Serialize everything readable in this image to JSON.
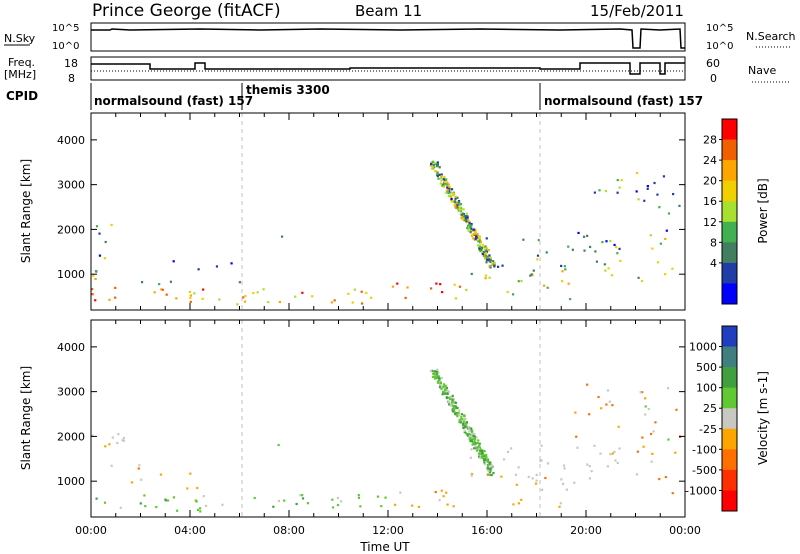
{
  "header": {
    "station": "Prince George (fitACF)",
    "beam": "Beam 11",
    "date": "15/Feb/2011"
  },
  "top_panels": {
    "nsky_label": "N.Sky",
    "nsky_ticks": [
      "10^5",
      "10^0"
    ],
    "nsearch_label": "N.Search",
    "nsearch_ticks": [
      "10^5",
      "10^0"
    ],
    "freq_label": "Freq.",
    "freq_unit": "[MHz]",
    "freq_ticks": [
      "18",
      "8"
    ],
    "nave_label": "Nave",
    "nave_ticks": [
      "60",
      "0"
    ],
    "cpid_label": "CPID",
    "cpid_segments": [
      {
        "text": "normalsound (fast) 157"
      },
      {
        "text": "themis 3300"
      },
      {
        "text": "normalsound (fast) 157"
      }
    ]
  },
  "chart_data": [
    {
      "type": "heatmap",
      "name": "power-panel",
      "ylabel": "Slant Range [km]",
      "xlim": [
        0,
        24
      ],
      "ylim": [
        200,
        4600
      ],
      "yticks": [
        "1000",
        "2000",
        "3000",
        "4000"
      ],
      "colorbar": {
        "label": "Power [dB]",
        "ticks": [
          "28",
          "24",
          "20",
          "16",
          "12",
          "8",
          "4"
        ],
        "colors": [
          "#ff0000",
          "#f06000",
          "#ffa500",
          "#f0d000",
          "#a8e030",
          "#40b050",
          "#408060",
          "#203ca8",
          "#0000ff"
        ]
      }
    },
    {
      "type": "heatmap",
      "name": "velocity-panel",
      "ylabel": "Slant Range [km]",
      "xlabel": "Time UT",
      "xlim": [
        0,
        24
      ],
      "ylim": [
        200,
        4600
      ],
      "yticks": [
        "1000",
        "2000",
        "3000",
        "4000"
      ],
      "xticks": [
        "00:00",
        "04:00",
        "08:00",
        "12:00",
        "16:00",
        "20:00",
        "00:00"
      ],
      "colorbar": {
        "label": "Velocity [m s-1]",
        "ticks": [
          "1000",
          "500",
          "100",
          "25",
          "-25",
          "-100",
          "-500",
          "-1000"
        ],
        "colors": [
          "#1f3fbf",
          "#3f7f7f",
          "#40a040",
          "#60c830",
          "#c8c8c0",
          "#ffa500",
          "#ff7000",
          "#ff3000",
          "#ff0000"
        ]
      }
    }
  ]
}
